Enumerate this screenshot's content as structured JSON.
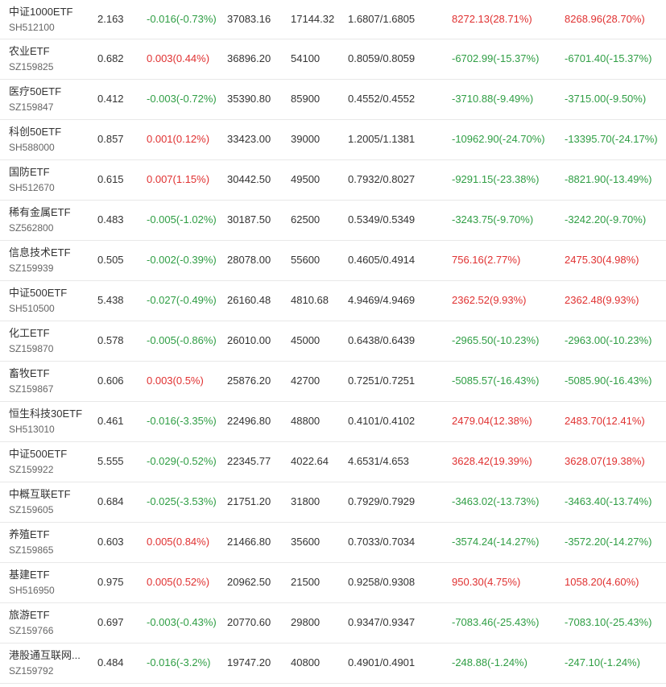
{
  "colors": {
    "up": "#e03131",
    "down": "#2f9e44",
    "text": "#333333",
    "code": "#666666"
  },
  "rows": [
    {
      "name": "中证1000ETF",
      "code": "SH512100",
      "price": "2.163",
      "change": "-0.016(-0.73%)",
      "change_dir": "down",
      "volume": "37083.16",
      "shares": "17144.32",
      "nav": "1.6807/1.6805",
      "p1": "8272.13(28.71%)",
      "p1_dir": "up",
      "p2": "8268.96(28.70%)",
      "p2_dir": "up"
    },
    {
      "name": "农业ETF",
      "code": "SZ159825",
      "price": "0.682",
      "change": "0.003(0.44%)",
      "change_dir": "up",
      "volume": "36896.20",
      "shares": "54100",
      "nav": "0.8059/0.8059",
      "p1": "-6702.99(-15.37%)",
      "p1_dir": "down",
      "p2": "-6701.40(-15.37%)",
      "p2_dir": "down"
    },
    {
      "name": "医疗50ETF",
      "code": "SZ159847",
      "price": "0.412",
      "change": "-0.003(-0.72%)",
      "change_dir": "down",
      "volume": "35390.80",
      "shares": "85900",
      "nav": "0.4552/0.4552",
      "p1": "-3710.88(-9.49%)",
      "p1_dir": "down",
      "p2": "-3715.00(-9.50%)",
      "p2_dir": "down"
    },
    {
      "name": "科创50ETF",
      "code": "SH588000",
      "price": "0.857",
      "change": "0.001(0.12%)",
      "change_dir": "up",
      "volume": "33423.00",
      "shares": "39000",
      "nav": "1.2005/1.1381",
      "p1": "-10962.90(-24.70%)",
      "p1_dir": "down",
      "p2": "-13395.70(-24.17%)",
      "p2_dir": "down"
    },
    {
      "name": "国防ETF",
      "code": "SH512670",
      "price": "0.615",
      "change": "0.007(1.15%)",
      "change_dir": "up",
      "volume": "30442.50",
      "shares": "49500",
      "nav": "0.7932/0.8027",
      "p1": "-9291.15(-23.38%)",
      "p1_dir": "down",
      "p2": "-8821.90(-13.49%)",
      "p2_dir": "down"
    },
    {
      "name": "稀有金属ETF",
      "code": "SZ562800",
      "price": "0.483",
      "change": "-0.005(-1.02%)",
      "change_dir": "down",
      "volume": "30187.50",
      "shares": "62500",
      "nav": "0.5349/0.5349",
      "p1": "-3243.75(-9.70%)",
      "p1_dir": "down",
      "p2": "-3242.20(-9.70%)",
      "p2_dir": "down"
    },
    {
      "name": "信息技术ETF",
      "code": "SZ159939",
      "price": "0.505",
      "change": "-0.002(-0.39%)",
      "change_dir": "down",
      "volume": "28078.00",
      "shares": "55600",
      "nav": "0.4605/0.4914",
      "p1": "756.16(2.77%)",
      "p1_dir": "up",
      "p2": "2475.30(4.98%)",
      "p2_dir": "up"
    },
    {
      "name": "中证500ETF",
      "code": "SH510500",
      "price": "5.438",
      "change": "-0.027(-0.49%)",
      "change_dir": "down",
      "volume": "26160.48",
      "shares": "4810.68",
      "nav": "4.9469/4.9469",
      "p1": "2362.52(9.93%)",
      "p1_dir": "up",
      "p2": "2362.48(9.93%)",
      "p2_dir": "up"
    },
    {
      "name": "化工ETF",
      "code": "SZ159870",
      "price": "0.578",
      "change": "-0.005(-0.86%)",
      "change_dir": "down",
      "volume": "26010.00",
      "shares": "45000",
      "nav": "0.6438/0.6439",
      "p1": "-2965.50(-10.23%)",
      "p1_dir": "down",
      "p2": "-2963.00(-10.23%)",
      "p2_dir": "down"
    },
    {
      "name": "畜牧ETF",
      "code": "SZ159867",
      "price": "0.606",
      "change": "0.003(0.5%)",
      "change_dir": "up",
      "volume": "25876.20",
      "shares": "42700",
      "nav": "0.7251/0.7251",
      "p1": "-5085.57(-16.43%)",
      "p1_dir": "down",
      "p2": "-5085.90(-16.43%)",
      "p2_dir": "down"
    },
    {
      "name": "恒生科技30ETF",
      "code": "SH513010",
      "price": "0.461",
      "change": "-0.016(-3.35%)",
      "change_dir": "down",
      "volume": "22496.80",
      "shares": "48800",
      "nav": "0.4101/0.4102",
      "p1": "2479.04(12.38%)",
      "p1_dir": "up",
      "p2": "2483.70(12.41%)",
      "p2_dir": "up"
    },
    {
      "name": "中证500ETF",
      "code": "SZ159922",
      "price": "5.555",
      "change": "-0.029(-0.52%)",
      "change_dir": "down",
      "volume": "22345.77",
      "shares": "4022.64",
      "nav": "4.6531/4.653",
      "p1": "3628.42(19.39%)",
      "p1_dir": "up",
      "p2": "3628.07(19.38%)",
      "p2_dir": "up"
    },
    {
      "name": "中概互联ETF",
      "code": "SZ159605",
      "price": "0.684",
      "change": "-0.025(-3.53%)",
      "change_dir": "down",
      "volume": "21751.20",
      "shares": "31800",
      "nav": "0.7929/0.7929",
      "p1": "-3463.02(-13.73%)",
      "p1_dir": "down",
      "p2": "-3463.40(-13.74%)",
      "p2_dir": "down"
    },
    {
      "name": "养殖ETF",
      "code": "SZ159865",
      "price": "0.603",
      "change": "0.005(0.84%)",
      "change_dir": "up",
      "volume": "21466.80",
      "shares": "35600",
      "nav": "0.7033/0.7034",
      "p1": "-3574.24(-14.27%)",
      "p1_dir": "down",
      "p2": "-3572.20(-14.27%)",
      "p2_dir": "down"
    },
    {
      "name": "基建ETF",
      "code": "SH516950",
      "price": "0.975",
      "change": "0.005(0.52%)",
      "change_dir": "up",
      "volume": "20962.50",
      "shares": "21500",
      "nav": "0.9258/0.9308",
      "p1": "950.30(4.75%)",
      "p1_dir": "up",
      "p2": "1058.20(4.60%)",
      "p2_dir": "up"
    },
    {
      "name": "旅游ETF",
      "code": "SZ159766",
      "price": "0.697",
      "change": "-0.003(-0.43%)",
      "change_dir": "down",
      "volume": "20770.60",
      "shares": "29800",
      "nav": "0.9347/0.9347",
      "p1": "-7083.46(-25.43%)",
      "p1_dir": "down",
      "p2": "-7083.10(-25.43%)",
      "p2_dir": "down"
    },
    {
      "name": "港股通互联网...",
      "code": "SZ159792",
      "price": "0.484",
      "change": "-0.016(-3.2%)",
      "change_dir": "down",
      "volume": "19747.20",
      "shares": "40800",
      "nav": "0.4901/0.4901",
      "p1": "-248.88(-1.24%)",
      "p1_dir": "down",
      "p2": "-247.10(-1.24%)",
      "p2_dir": "down"
    }
  ]
}
